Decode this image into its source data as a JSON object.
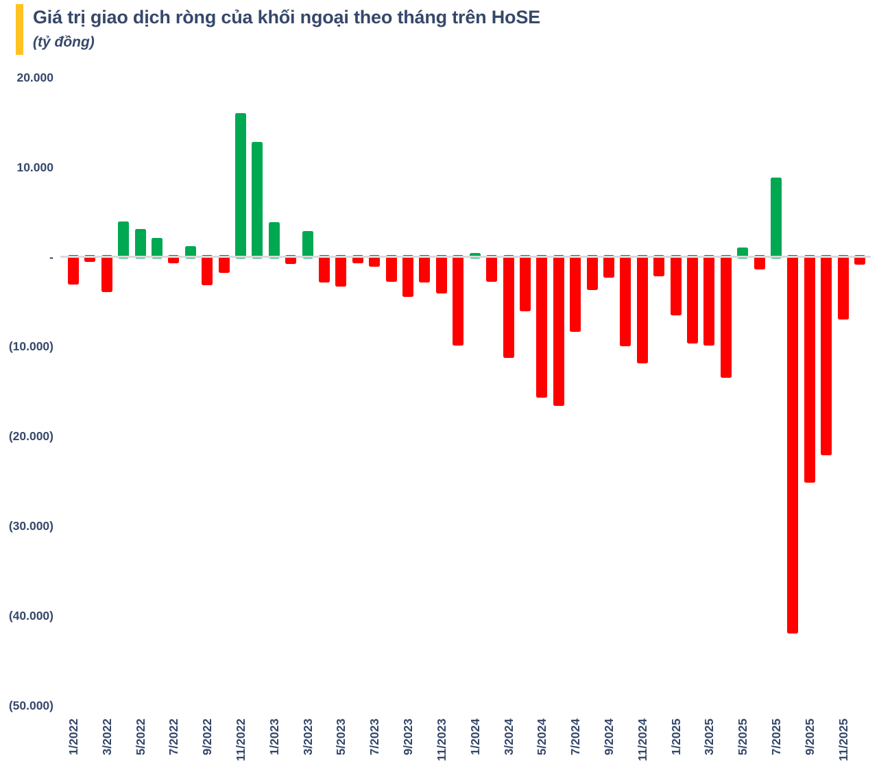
{
  "header": {
    "title": "Giá trị giao dịch ròng của khối ngoại theo tháng trên HoSE",
    "subtitle": "(tỷ đồng)",
    "accent_color": "#FFC222"
  },
  "chart_data": {
    "type": "bar",
    "title": "Giá trị giao dịch ròng của khối ngoại theo tháng trên HoSE",
    "unit": "tỷ đồng",
    "grid": false,
    "legend_position": "none",
    "ylim": [
      -50000,
      20000
    ],
    "colors": {
      "positive": "#00A852",
      "negative": "#FF0000",
      "axis_line": "#DADADA",
      "text": "#36486A"
    },
    "categories": [
      "1/2022",
      "2/2022",
      "3/2022",
      "4/2022",
      "5/2022",
      "6/2022",
      "7/2022",
      "8/2022",
      "9/2022",
      "10/2022",
      "11/2022",
      "12/2022",
      "1/2023",
      "2/2023",
      "3/2023",
      "4/2023",
      "5/2023",
      "6/2023",
      "7/2023",
      "8/2023",
      "9/2023",
      "10/2023",
      "11/2023",
      "12/2023",
      "1/2024",
      "2/2024",
      "3/2024",
      "4/2024",
      "5/2024",
      "6/2024",
      "7/2024",
      "8/2024",
      "9/2024",
      "10/2024",
      "11/2024",
      "12/2024",
      "1/2025",
      "2/2025",
      "3/2025",
      "4/2025",
      "5/2025",
      "6/2025",
      "7/2025",
      "8/2025",
      "9/2025",
      "10/2025",
      "11/2025",
      "12/2025"
    ],
    "values": [
      -3100,
      -600,
      -3950,
      3950,
      3100,
      2100,
      -700,
      1150,
      -3200,
      -1800,
      16000,
      12800,
      3850,
      -800,
      2850,
      -2900,
      -3300,
      -700,
      -1100,
      -2800,
      -4500,
      -2900,
      -4100,
      -9900,
      400,
      -2800,
      -11300,
      -6050,
      -15700,
      -16600,
      -8350,
      -3700,
      -2300,
      -9950,
      -11900,
      -2200,
      -6500,
      -9650,
      -9900,
      -13500,
      1000,
      -1450,
      8800,
      -42000,
      -25200,
      -22100,
      -7000,
      -900
    ],
    "x_tick_labels": [
      "1/2022",
      "3/2022",
      "5/2022",
      "7/2022",
      "9/2022",
      "11/2022",
      "1/2023",
      "3/2023",
      "5/2023",
      "7/2023",
      "9/2023",
      "11/2023",
      "1/2024",
      "3/2024",
      "5/2024",
      "7/2024",
      "9/2024",
      "11/2024",
      "1/2025",
      "3/2025",
      "5/2025",
      "7/2025",
      "9/2025",
      "11/2025"
    ],
    "y_ticks": [
      {
        "label": "20.000",
        "value": 20000
      },
      {
        "label": "10.000",
        "value": 10000
      },
      {
        "label": "-",
        "value": 0
      },
      {
        "label": "(10.000)",
        "value": -10000
      },
      {
        "label": "(20.000)",
        "value": -20000
      },
      {
        "label": "(30.000)",
        "value": -30000
      },
      {
        "label": "(40.000)",
        "value": -40000
      },
      {
        "label": "(50.000)",
        "value": -50000
      }
    ]
  }
}
